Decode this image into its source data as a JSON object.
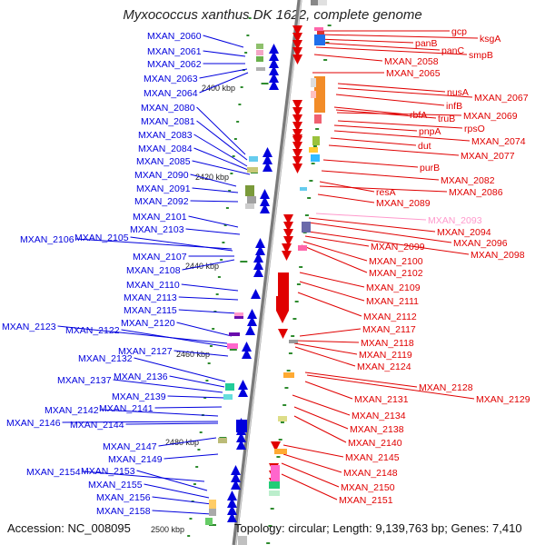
{
  "title": "Myxococcus xanthus DK 1622, complete genome",
  "footer": {
    "accession": "Accession: NC_008095",
    "info": "Topology: circular; Length: 9,139,763 bp; Genes: 7,410"
  },
  "colors": {
    "forward": "#e00000",
    "reverse": "#0000dd",
    "highlight": "#ff99cc",
    "axis": "#888888",
    "tick": "#2e8b2e"
  },
  "axis_ticks": [
    {
      "label": "2400 kbp"
    },
    {
      "label": "2420 kbp"
    },
    {
      "label": "2440 kbp"
    },
    {
      "label": "2460 kbp"
    },
    {
      "label": "2480 kbp"
    },
    {
      "label": "2500 kbp"
    }
  ],
  "left_genes": [
    "MXAN_2060",
    "MXAN_2061",
    "MXAN_2062",
    "MXAN_2063",
    "MXAN_2064",
    "MXAN_2080",
    "MXAN_2081",
    "MXAN_2083",
    "MXAN_2084",
    "MXAN_2085",
    "MXAN_2090",
    "MXAN_2091",
    "MXAN_2092",
    "MXAN_2101",
    "MXAN_2103",
    "MXAN_2106",
    "MXAN_2105",
    "MXAN_2107",
    "MXAN_2108",
    "MXAN_2110",
    "MXAN_2113",
    "MXAN_2115",
    "MXAN_2123",
    "MXAN_2122",
    "MXAN_2120",
    "MXAN_2127",
    "MXAN_2132",
    "MXAN_2136",
    "MXAN_2137",
    "MXAN_2139",
    "MXAN_2141",
    "MXAN_2142",
    "MXAN_2146",
    "MXAN_2144",
    "MXAN_2147",
    "MXAN_2149",
    "MXAN_2154",
    "MXAN_2153",
    "MXAN_2155",
    "MXAN_2156",
    "MXAN_2158"
  ],
  "right_genes": [
    "gcp",
    "ksgA",
    "panB",
    "panC",
    "smpB",
    "MXAN_2058",
    "MXAN_2065",
    "nusA",
    "MXAN_2067",
    "infB",
    "rbfA",
    "truB",
    "MXAN_2069",
    "rpsO",
    "pnpA",
    "MXAN_2074",
    "dut",
    "MXAN_2077",
    "purB",
    "MXAN_2082",
    "resA",
    "MXAN_2086",
    "MXAN_2089",
    "MXAN_2093",
    "MXAN_2094",
    "MXAN_2096",
    "MXAN_2099",
    "MXAN_2098",
    "MXAN_2100",
    "MXAN_2102",
    "MXAN_2109",
    "MXAN_2111",
    "MXAN_2112",
    "MXAN_2117",
    "MXAN_2118",
    "MXAN_2119",
    "MXAN_2124",
    "MXAN_2128",
    "MXAN_2129",
    "MXAN_2131",
    "MXAN_2134",
    "MXAN_2138",
    "MXAN_2140",
    "MXAN_2145",
    "MXAN_2148",
    "MXAN_2150",
    "MXAN_2151"
  ],
  "highlighted": [
    "MXAN_2093"
  ]
}
